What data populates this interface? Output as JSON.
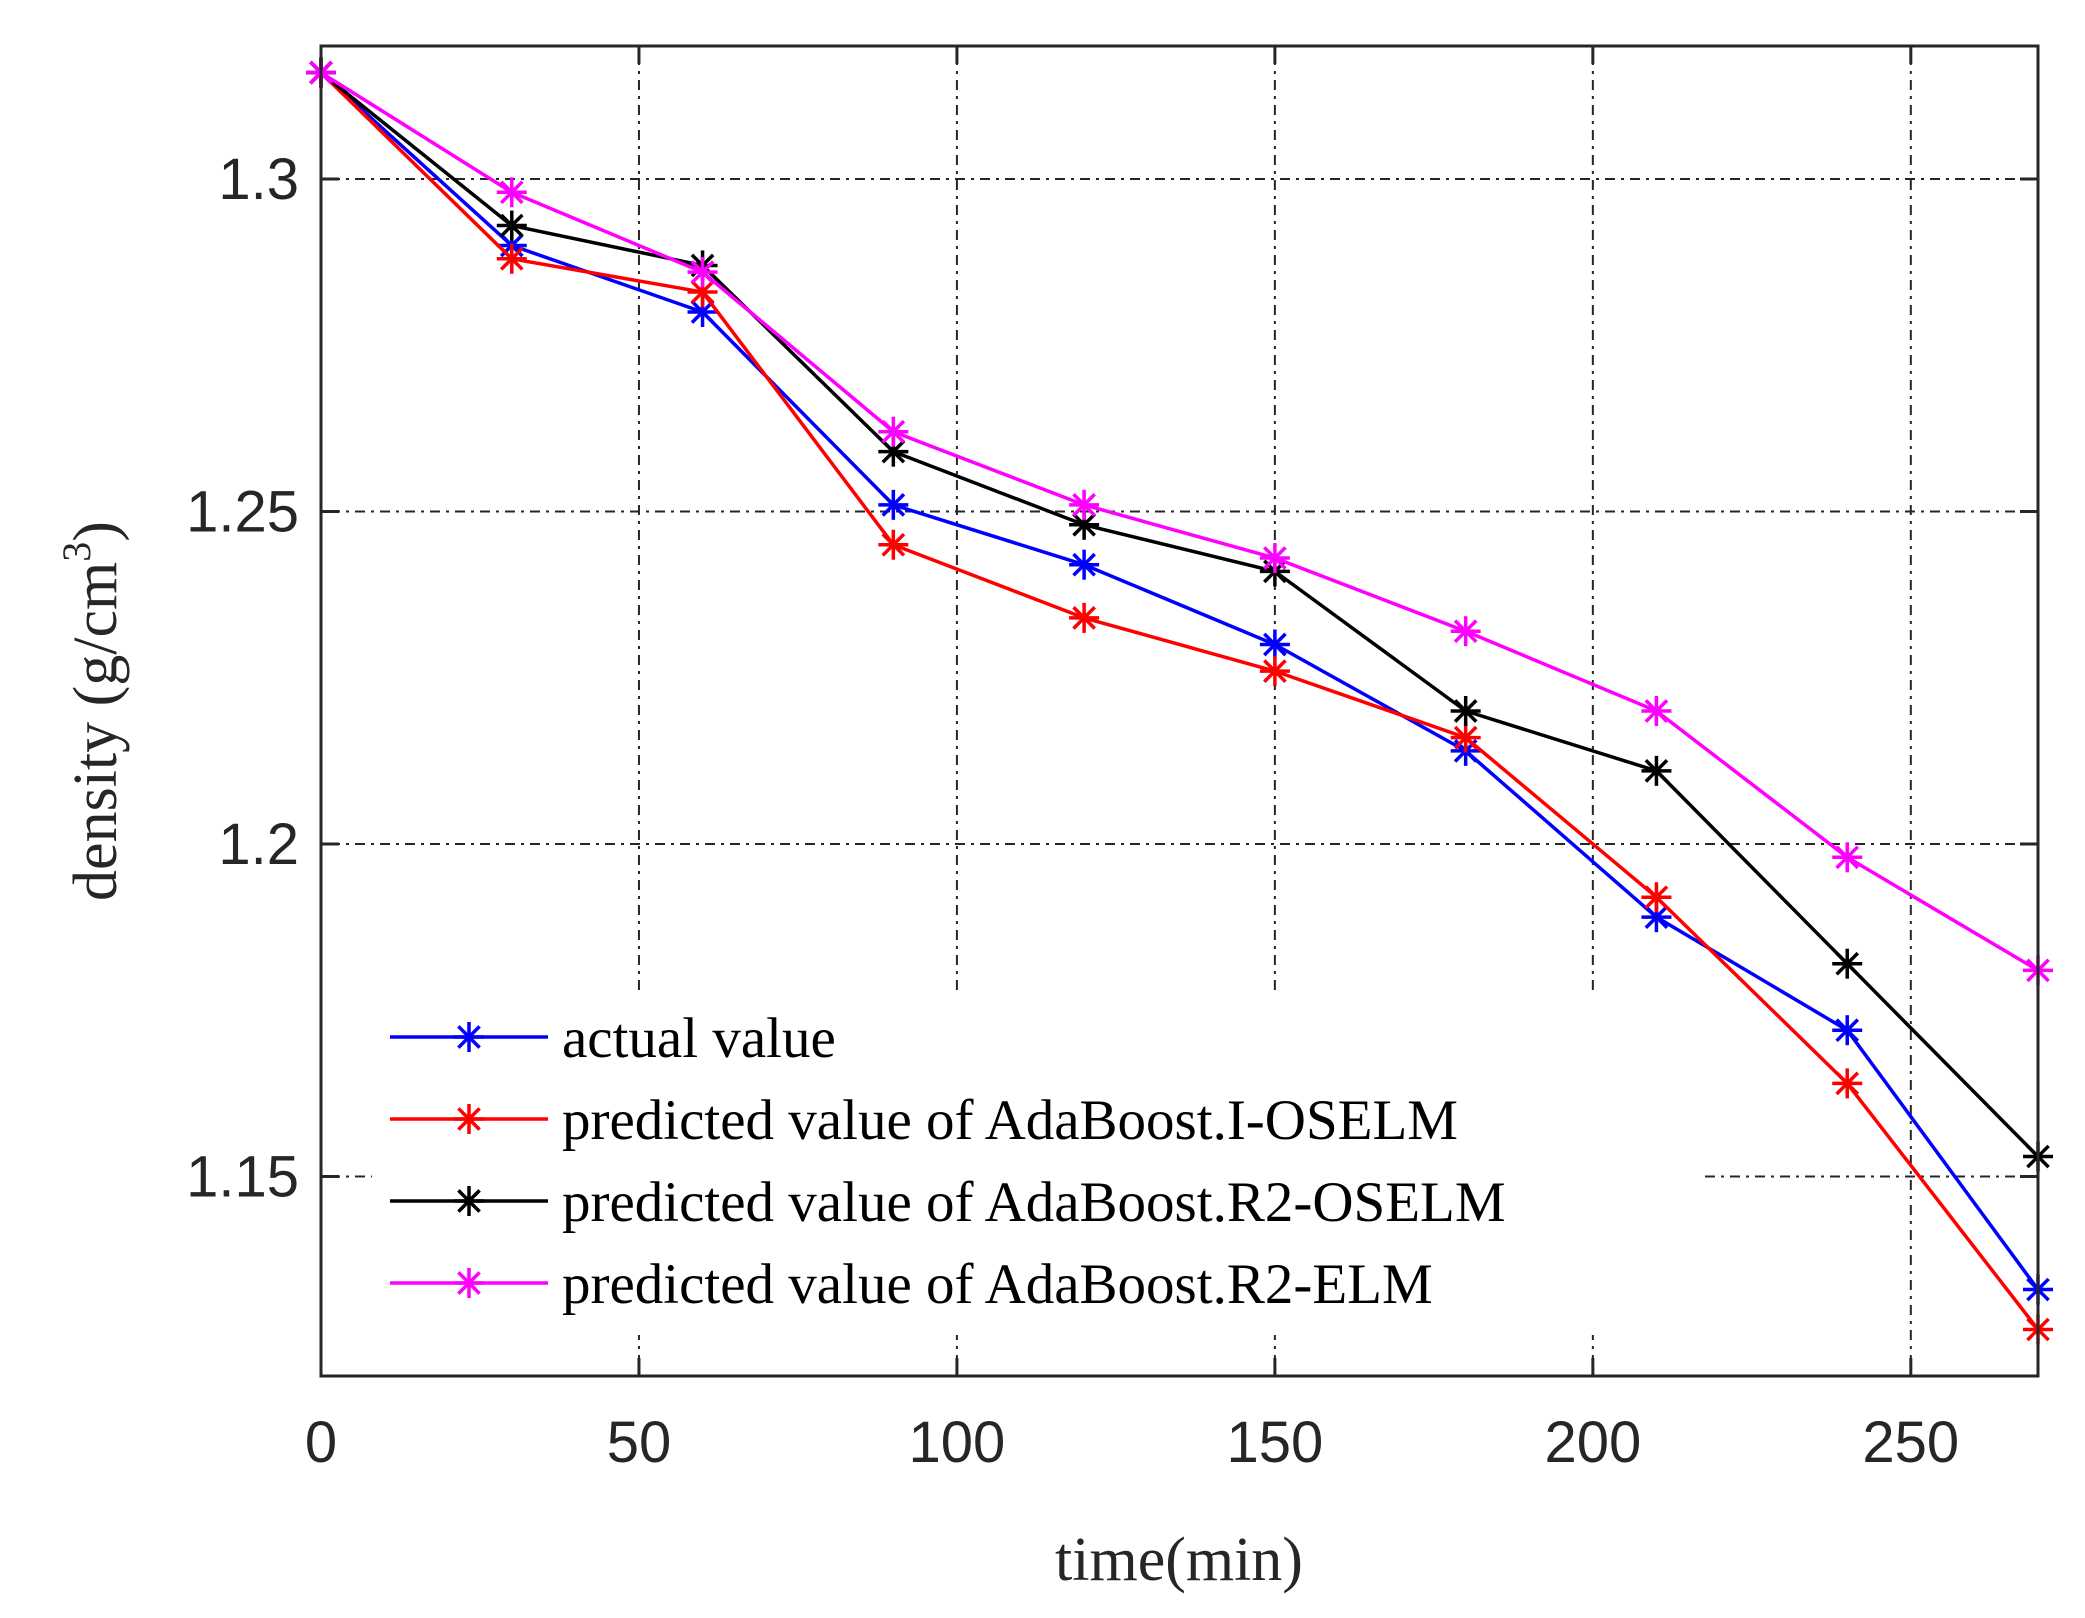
{
  "chart_data": {
    "type": "line",
    "title": "",
    "xlabel": "time(min)",
    "ylabel": "density (g/cm",
    "ylabel_superscript": "3",
    "ylabel_suffix": ")",
    "xlim": [
      0,
      270
    ],
    "ylim": [
      1.12,
      1.32
    ],
    "xticks": [
      0,
      50,
      100,
      150,
      200,
      250
    ],
    "yticks": [
      1.15,
      1.2,
      1.25,
      1.3
    ],
    "xtick_labels": [
      "0",
      "50",
      "100",
      "150",
      "200",
      "250"
    ],
    "ytick_labels": [
      "1.15",
      "1.2",
      "1.25",
      "1.3"
    ],
    "grid": true,
    "legend_position": "bottom-left",
    "x": [
      0,
      30,
      60,
      90,
      120,
      150,
      180,
      210,
      240,
      270
    ],
    "series": [
      {
        "name": "actual value",
        "color": "#0000ff",
        "marker": "asterisk",
        "values": [
          1.316,
          1.29,
          1.28,
          1.251,
          1.242,
          1.23,
          1.214,
          1.189,
          1.172,
          1.133
        ]
      },
      {
        "name": "predicted value of AdaBoost.I-OSELM",
        "color": "#ff0000",
        "marker": "asterisk",
        "values": [
          1.316,
          1.288,
          1.283,
          1.245,
          1.234,
          1.226,
          1.216,
          1.192,
          1.164,
          1.127
        ]
      },
      {
        "name": "predicted value of AdaBoost.R2-OSELM",
        "color": "#000000",
        "marker": "asterisk",
        "values": [
          1.316,
          1.293,
          1.287,
          1.259,
          1.248,
          1.241,
          1.22,
          1.211,
          1.182,
          1.153
        ]
      },
      {
        "name": "predicted value of AdaBoost.R2-ELM",
        "color": "#ff00ff",
        "marker": "asterisk",
        "values": [
          1.316,
          1.298,
          1.286,
          1.262,
          1.251,
          1.243,
          1.232,
          1.22,
          1.198,
          1.181
        ]
      }
    ]
  }
}
